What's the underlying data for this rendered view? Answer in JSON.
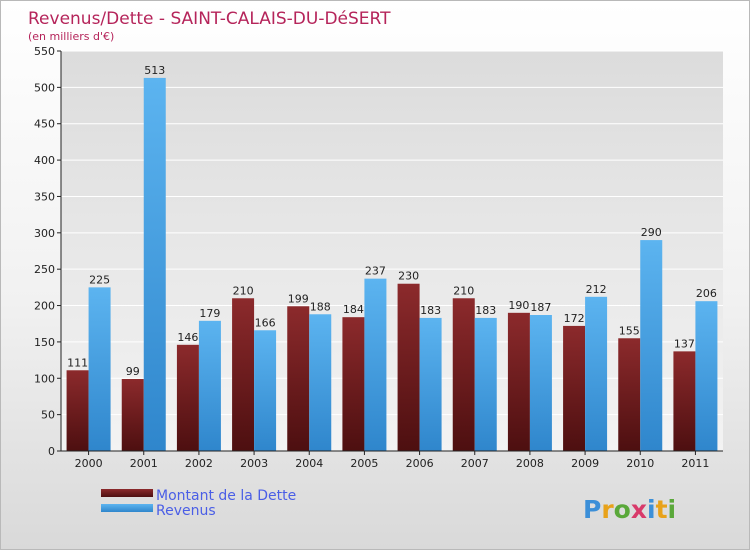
{
  "chart_data": {
    "type": "bar",
    "title": "Revenus/Dette - SAINT-CALAIS-DU-DéSERT",
    "subtitle": "(en milliers d'€)",
    "categories": [
      "2000",
      "2001",
      "2002",
      "2003",
      "2004",
      "2005",
      "2006",
      "2007",
      "2008",
      "2009",
      "2010",
      "2011"
    ],
    "series": [
      {
        "name": "Montant de la Dette",
        "color": "#7a1e22",
        "values": [
          111,
          99,
          146,
          210,
          199,
          184,
          230,
          210,
          190,
          172,
          155,
          137
        ]
      },
      {
        "name": "Revenus",
        "color": "#4aa3e6",
        "values": [
          225,
          513,
          179,
          166,
          188,
          237,
          183,
          183,
          187,
          212,
          290,
          206
        ]
      }
    ],
    "ylim": [
      0,
      550
    ],
    "yticks": [
      0,
      50,
      100,
      150,
      200,
      250,
      300,
      350,
      400,
      450,
      500,
      550
    ],
    "grid": true,
    "legend_position": "bottom-left"
  },
  "logo": {
    "text": "Proxiti"
  }
}
